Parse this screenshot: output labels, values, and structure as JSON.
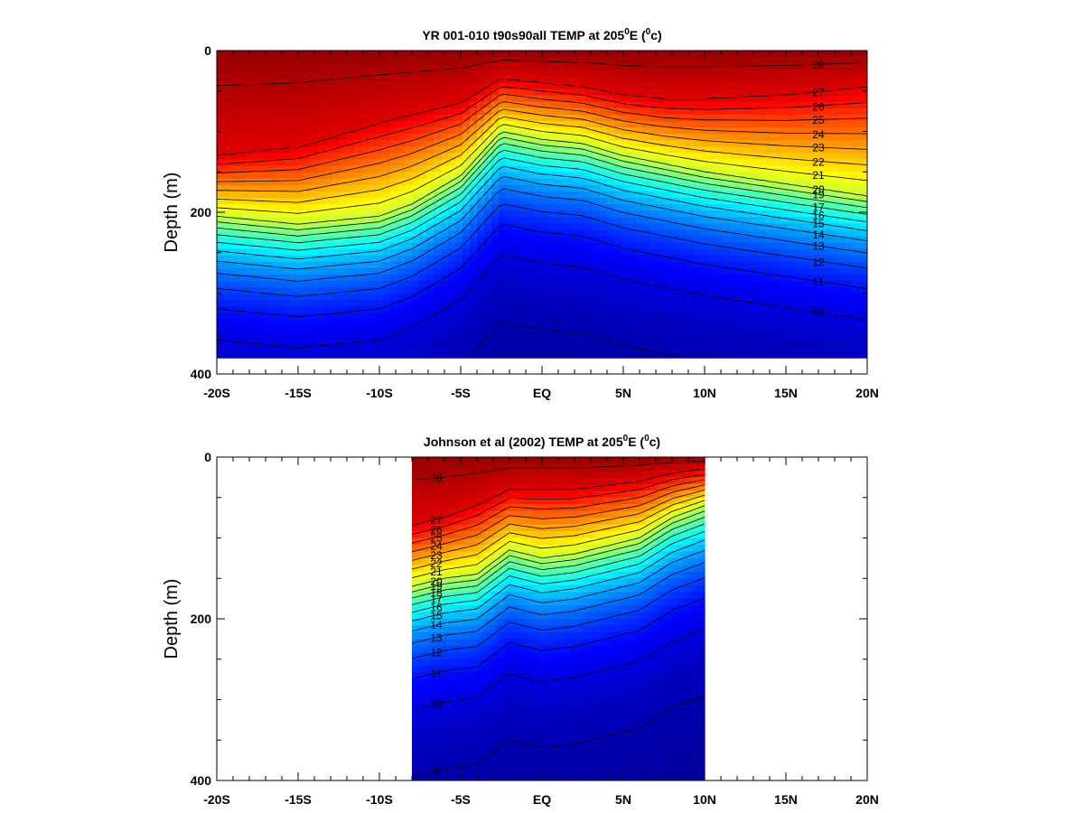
{
  "chart_data": [
    {
      "type": "heatmap",
      "subtype": "filled-contour",
      "title_main": "YR 001-010 t90s90all TEMP at 205",
      "title_sup": "0",
      "title_unit_pre": "E (",
      "title_unit_sup": "0",
      "title_unit_post": "c)",
      "xlabel": "",
      "ylabel": "Depth (m)",
      "x_tick_labels": [
        "-20S",
        "-15S",
        "-10S",
        "-5S",
        "EQ",
        "5N",
        "10N",
        "15N",
        "20N"
      ],
      "y_tick_labels": [
        "0",
        "200",
        "400"
      ],
      "xlim": [
        -20,
        20
      ],
      "ylim": [
        400,
        0
      ],
      "y_inverted": true,
      "data_depth_max": 380,
      "colormap": "jet",
      "color_range": [
        8,
        29
      ],
      "contour_interval": 1,
      "contour_labels": [
        "25",
        "24",
        "23",
        "22",
        "21",
        "20",
        "19",
        "17",
        "16",
        "15",
        "14",
        "13",
        "12",
        "11",
        "10",
        "9",
        "26",
        "27",
        "28"
      ],
      "profiles": [
        {
          "lat": -20,
          "z20": 205,
          "zsst": 130
        },
        {
          "lat": -15,
          "z20": 215,
          "zsst": 120
        },
        {
          "lat": -10,
          "z20": 205,
          "zsst": 90
        },
        {
          "lat": -8,
          "z20": 190,
          "zsst": 80
        },
        {
          "lat": -5,
          "z20": 155,
          "zsst": 65
        },
        {
          "lat": -2.5,
          "z20": 100,
          "zsst": 35
        },
        {
          "lat": 0,
          "z20": 110,
          "zsst": 40
        },
        {
          "lat": 2.5,
          "z20": 115,
          "zsst": 45
        },
        {
          "lat": 5,
          "z20": 130,
          "zsst": 55
        },
        {
          "lat": 7.5,
          "z20": 140,
          "zsst": 60
        },
        {
          "lat": 10,
          "z20": 150,
          "zsst": 60
        },
        {
          "lat": 15,
          "z20": 165,
          "zsst": 55
        },
        {
          "lat": 20,
          "z20": 180,
          "zsst": 45
        }
      ]
    },
    {
      "type": "heatmap",
      "subtype": "filled-contour",
      "title_main": "Johnson et al (2002) TEMP at 205",
      "title_sup": "0",
      "title_unit_pre": "E (",
      "title_unit_sup": "0",
      "title_unit_post": "c)",
      "xlabel": "",
      "ylabel": "Depth (m)",
      "x_tick_labels": [
        "-20S",
        "-15S",
        "-10S",
        "-5S",
        "EQ",
        "5N",
        "10N",
        "15N",
        "20N"
      ],
      "y_tick_labels": [
        "0",
        "200",
        "400"
      ],
      "xlim": [
        -20,
        20
      ],
      "ylim": [
        400,
        0
      ],
      "y_inverted": true,
      "data_lat_range": [
        -8,
        10
      ],
      "data_depth_max": 400,
      "colormap": "jet",
      "color_range": [
        8,
        29
      ],
      "contour_interval": 1,
      "contour_labels": [
        "28",
        "27",
        "26",
        "25",
        "24",
        "23",
        "22",
        "21",
        "20",
        "19",
        "18",
        "17",
        "16",
        "15",
        "14",
        "13",
        "12",
        "11",
        "10",
        "9"
      ],
      "profiles": [
        {
          "lat": -8,
          "z20": 160,
          "zsst": 85
        },
        {
          "lat": -6,
          "z20": 150,
          "zsst": 75
        },
        {
          "lat": -4,
          "z20": 145,
          "zsst": 60
        },
        {
          "lat": -2,
          "z20": 115,
          "zsst": 40
        },
        {
          "lat": 0,
          "z20": 125,
          "zsst": 40
        },
        {
          "lat": 2,
          "z20": 120,
          "zsst": 40
        },
        {
          "lat": 4,
          "z20": 110,
          "zsst": 35
        },
        {
          "lat": 6,
          "z20": 100,
          "zsst": 30
        },
        {
          "lat": 8,
          "z20": 75,
          "zsst": 20
        },
        {
          "lat": 10,
          "z20": 60,
          "zsst": 15
        }
      ]
    }
  ]
}
